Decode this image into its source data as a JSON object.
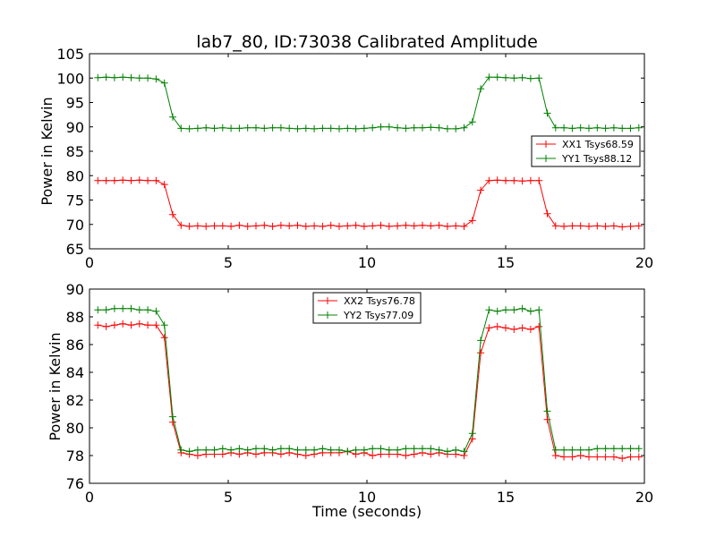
{
  "chart_data": [
    {
      "type": "line",
      "title": "lab7_80, ID:73038 Calibrated Amplitude",
      "xlabel": "",
      "ylabel": "Power in Kelvin",
      "xlim": [
        0,
        20
      ],
      "ylim": [
        65,
        105
      ],
      "xticks": [
        "0",
        "5",
        "10",
        "15",
        "20"
      ],
      "yticks": [
        "65",
        "70",
        "75",
        "80",
        "85",
        "90",
        "95",
        "100",
        "105"
      ],
      "legend_position": "right",
      "x": [
        0.3,
        0.6,
        0.9,
        1.2,
        1.5,
        1.8,
        2.1,
        2.4,
        2.7,
        3.0,
        3.3,
        3.6,
        3.9,
        4.2,
        4.5,
        4.8,
        5.1,
        5.4,
        5.7,
        6.0,
        6.3,
        6.6,
        6.9,
        7.2,
        7.5,
        7.8,
        8.1,
        8.4,
        8.7,
        9.0,
        9.3,
        9.6,
        9.9,
        10.2,
        10.5,
        10.8,
        11.1,
        11.4,
        11.7,
        12.0,
        12.3,
        12.6,
        12.9,
        13.2,
        13.5,
        13.8,
        14.1,
        14.4,
        14.7,
        15.0,
        15.3,
        15.6,
        15.9,
        16.2,
        16.5,
        16.8,
        17.1,
        17.4,
        17.7,
        18.0,
        18.3,
        18.6,
        18.9,
        19.2,
        19.5,
        19.8
      ],
      "series": [
        {
          "name": "XX1 Tsys68.59",
          "color": "#ff0000",
          "values": [
            79.0,
            79.0,
            79.0,
            79.1,
            79.0,
            79.1,
            79.0,
            79.0,
            78.2,
            72.0,
            69.8,
            69.6,
            69.7,
            69.6,
            69.7,
            69.7,
            69.6,
            69.8,
            69.6,
            69.7,
            69.8,
            69.6,
            69.8,
            69.7,
            69.8,
            69.6,
            69.7,
            69.6,
            69.8,
            69.6,
            69.7,
            69.8,
            69.6,
            69.7,
            69.8,
            69.6,
            69.7,
            69.8,
            69.7,
            69.8,
            69.7,
            69.8,
            69.6,
            69.7,
            69.6,
            70.8,
            77.0,
            79.0,
            79.1,
            79.0,
            79.0,
            78.9,
            79.0,
            79.0,
            72.2,
            69.7,
            69.6,
            69.7,
            69.7,
            69.6,
            69.7,
            69.6,
            69.7,
            69.5,
            69.6,
            69.7
          ]
        },
        {
          "name": "YY1 Tsys88.12",
          "color": "#008000",
          "values": [
            100.1,
            100.2,
            100.1,
            100.2,
            100.1,
            100.0,
            100.0,
            99.8,
            99.0,
            92.0,
            89.7,
            89.6,
            89.7,
            89.8,
            89.7,
            89.8,
            89.7,
            89.7,
            89.8,
            89.8,
            89.7,
            89.8,
            89.8,
            89.7,
            89.6,
            89.7,
            89.6,
            89.7,
            89.7,
            89.6,
            89.7,
            89.6,
            89.7,
            89.8,
            90.0,
            90.0,
            89.8,
            89.7,
            89.8,
            89.8,
            89.9,
            89.8,
            89.6,
            89.6,
            89.8,
            91.0,
            97.8,
            100.2,
            100.2,
            100.1,
            100.0,
            100.1,
            99.9,
            100.0,
            92.8,
            89.8,
            89.8,
            89.7,
            89.8,
            89.7,
            89.8,
            89.7,
            89.8,
            89.7,
            89.7,
            89.8
          ]
        }
      ]
    },
    {
      "type": "line",
      "title": "",
      "xlabel": "Time (seconds)",
      "ylabel": "Power in Kelvin",
      "xlim": [
        0,
        20
      ],
      "ylim": [
        76,
        90
      ],
      "xticks": [
        "0",
        "5",
        "10",
        "15",
        "20"
      ],
      "yticks": [
        "76",
        "78",
        "80",
        "82",
        "84",
        "86",
        "88",
        "90"
      ],
      "legend_position": "upper-center",
      "x": [
        0.3,
        0.6,
        0.9,
        1.2,
        1.5,
        1.8,
        2.1,
        2.4,
        2.7,
        3.0,
        3.3,
        3.6,
        3.9,
        4.2,
        4.5,
        4.8,
        5.1,
        5.4,
        5.7,
        6.0,
        6.3,
        6.6,
        6.9,
        7.2,
        7.5,
        7.8,
        8.1,
        8.4,
        8.7,
        9.0,
        9.3,
        9.6,
        9.9,
        10.2,
        10.5,
        10.8,
        11.1,
        11.4,
        11.7,
        12.0,
        12.3,
        12.6,
        12.9,
        13.2,
        13.5,
        13.8,
        14.1,
        14.4,
        14.7,
        15.0,
        15.3,
        15.6,
        15.9,
        16.2,
        16.5,
        16.8,
        17.1,
        17.4,
        17.7,
        18.0,
        18.3,
        18.6,
        18.9,
        19.2,
        19.5,
        19.8
      ],
      "series": [
        {
          "name": "XX2 Tsys76.78",
          "color": "#ff0000",
          "values": [
            87.4,
            87.3,
            87.4,
            87.5,
            87.4,
            87.5,
            87.4,
            87.4,
            86.5,
            80.4,
            78.2,
            78.1,
            78.0,
            78.1,
            78.1,
            78.1,
            78.2,
            78.1,
            78.2,
            78.1,
            78.2,
            78.2,
            78.1,
            78.2,
            78.1,
            78.0,
            78.1,
            78.2,
            78.2,
            78.2,
            78.3,
            78.1,
            78.2,
            78.0,
            78.1,
            78.1,
            78.1,
            78.0,
            78.1,
            78.2,
            78.1,
            78.2,
            78.1,
            78.1,
            78.0,
            79.2,
            85.4,
            87.2,
            87.3,
            87.2,
            87.1,
            87.2,
            87.1,
            87.3,
            80.6,
            78.0,
            77.9,
            77.9,
            78.0,
            77.9,
            77.9,
            77.9,
            77.9,
            77.8,
            77.9,
            77.9
          ]
        },
        {
          "name": "YY2 Tsys77.09",
          "color": "#008000",
          "values": [
            88.5,
            88.5,
            88.6,
            88.6,
            88.6,
            88.5,
            88.5,
            88.4,
            87.4,
            80.8,
            78.4,
            78.3,
            78.4,
            78.4,
            78.4,
            78.5,
            78.4,
            78.5,
            78.4,
            78.5,
            78.5,
            78.4,
            78.5,
            78.5,
            78.4,
            78.4,
            78.4,
            78.5,
            78.4,
            78.4,
            78.3,
            78.4,
            78.4,
            78.5,
            78.5,
            78.4,
            78.4,
            78.5,
            78.5,
            78.5,
            78.5,
            78.4,
            78.3,
            78.4,
            78.3,
            79.6,
            86.3,
            88.5,
            88.4,
            88.5,
            88.5,
            88.6,
            88.4,
            88.5,
            81.2,
            78.4,
            78.4,
            78.4,
            78.4,
            78.4,
            78.5,
            78.5,
            78.5,
            78.5,
            78.5,
            78.5
          ]
        }
      ]
    }
  ]
}
